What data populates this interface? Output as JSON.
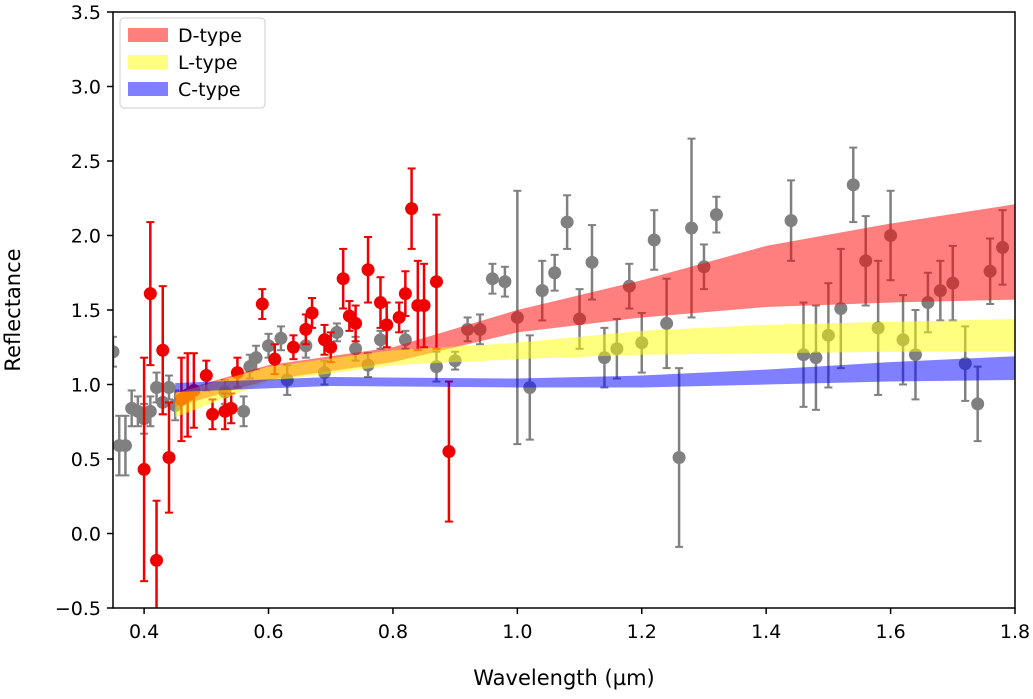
{
  "chart_data": {
    "type": "scatter",
    "title": "",
    "xlabel": "Wavelength (µm)",
    "ylabel": "Reflectance",
    "xlim": [
      0.35,
      1.8
    ],
    "ylim": [
      -0.5,
      3.5
    ],
    "xticks": [
      "0.4",
      "0.6",
      "0.8",
      "1.0",
      "1.2",
      "1.4",
      "1.6",
      "1.8"
    ],
    "xtick_values": [
      0.4,
      0.6,
      0.8,
      1.0,
      1.2,
      1.4,
      1.6,
      1.8
    ],
    "yticks": [
      "−0.5",
      "0.0",
      "0.5",
      "1.0",
      "1.5",
      "2.0",
      "2.5",
      "3.0",
      "3.5"
    ],
    "ytick_values": [
      -0.5,
      0,
      0.5,
      1.0,
      1.5,
      2.0,
      2.5,
      3.0,
      3.5
    ],
    "grid": false,
    "legend_position": "top-left",
    "bands": [
      {
        "name": "D-type",
        "color": "#ff0000",
        "x": [
          0.45,
          0.6,
          0.8,
          1.0,
          1.2,
          1.4,
          1.6,
          1.8
        ],
        "low": [
          0.85,
          1.03,
          1.15,
          1.35,
          1.45,
          1.52,
          1.55,
          1.57
        ],
        "high": [
          0.95,
          1.13,
          1.25,
          1.5,
          1.7,
          1.93,
          2.08,
          2.21
        ]
      },
      {
        "name": "L-type",
        "color": "#ffff00",
        "x": [
          0.45,
          0.6,
          0.8,
          1.0,
          1.2,
          1.4,
          1.6,
          1.8
        ],
        "low": [
          0.78,
          1.02,
          1.13,
          1.17,
          1.2,
          1.21,
          1.22,
          1.22
        ],
        "high": [
          0.94,
          1.12,
          1.23,
          1.28,
          1.36,
          1.4,
          1.42,
          1.44
        ]
      },
      {
        "name": "C-type",
        "color": "#0000ff",
        "x": [
          0.45,
          0.7,
          1.0,
          1.2,
          1.4,
          1.6,
          1.8
        ],
        "low": [
          0.95,
          0.99,
          0.98,
          0.98,
          1.0,
          1.02,
          1.03
        ],
        "high": [
          1.01,
          1.05,
          1.04,
          1.06,
          1.1,
          1.15,
          1.19
        ]
      }
    ],
    "series": [
      {
        "color": "#808080",
        "points": [
          [
            0.35,
            1.22,
            0.1
          ],
          [
            0.36,
            0.59,
            0.2
          ],
          [
            0.37,
            0.59,
            0.2
          ],
          [
            0.38,
            0.84,
            0.12
          ],
          [
            0.39,
            0.82,
            0.1
          ],
          [
            0.4,
            0.77,
            0.1
          ],
          [
            0.41,
            0.82,
            0.1
          ],
          [
            0.42,
            0.98,
            0.1
          ],
          [
            0.43,
            0.88,
            0.08
          ],
          [
            0.44,
            0.98,
            0.08
          ],
          [
            0.45,
            0.86,
            0.1
          ],
          [
            0.53,
            0.95,
            0.08
          ],
          [
            0.56,
            0.82,
            0.1
          ],
          [
            0.57,
            1.12,
            0.08
          ],
          [
            0.58,
            1.18,
            0.08
          ],
          [
            0.6,
            1.26,
            0.08
          ],
          [
            0.62,
            1.31,
            0.08
          ],
          [
            0.63,
            1.03,
            0.1
          ],
          [
            0.66,
            1.26,
            0.08
          ],
          [
            0.69,
            1.08,
            0.08
          ],
          [
            0.71,
            1.35,
            0.06
          ],
          [
            0.74,
            1.24,
            0.08
          ],
          [
            0.76,
            1.13,
            0.08
          ],
          [
            0.78,
            1.3,
            0.06
          ],
          [
            0.82,
            1.3,
            0.06
          ],
          [
            0.87,
            1.12,
            0.1
          ],
          [
            0.9,
            1.16,
            0.06
          ],
          [
            0.92,
            1.37,
            0.08
          ],
          [
            0.94,
            1.37,
            0.1
          ],
          [
            0.96,
            1.71,
            0.1
          ],
          [
            0.98,
            1.69,
            0.1
          ],
          [
            1.0,
            1.45,
            0.85
          ],
          [
            1.02,
            0.98,
            0.35
          ],
          [
            1.04,
            1.63,
            0.2
          ],
          [
            1.06,
            1.75,
            0.12
          ],
          [
            1.08,
            2.09,
            0.18
          ],
          [
            1.1,
            1.44,
            0.2
          ],
          [
            1.12,
            1.82,
            0.25
          ],
          [
            1.14,
            1.18,
            0.2
          ],
          [
            1.16,
            1.24,
            0.2
          ],
          [
            1.18,
            1.66,
            0.15
          ],
          [
            1.2,
            1.28,
            0.2
          ],
          [
            1.22,
            1.97,
            0.2
          ],
          [
            1.24,
            1.41,
            0.3
          ],
          [
            1.26,
            0.51,
            0.6
          ],
          [
            1.28,
            2.05,
            0.6
          ],
          [
            1.3,
            1.79,
            0.15
          ],
          [
            1.32,
            2.14,
            0.12
          ],
          [
            1.44,
            2.1,
            0.27
          ],
          [
            1.46,
            1.2,
            0.35
          ],
          [
            1.48,
            1.18,
            0.35
          ],
          [
            1.5,
            1.33,
            0.35
          ],
          [
            1.52,
            1.51,
            0.4
          ],
          [
            1.54,
            2.34,
            0.25
          ],
          [
            1.56,
            1.83,
            0.3
          ],
          [
            1.58,
            1.38,
            0.45
          ],
          [
            1.6,
            2.0,
            0.3
          ],
          [
            1.62,
            1.3,
            0.3
          ],
          [
            1.64,
            1.2,
            0.3
          ],
          [
            1.66,
            1.55,
            0.2
          ],
          [
            1.68,
            1.63,
            0.2
          ],
          [
            1.7,
            1.68,
            0.25
          ],
          [
            1.72,
            1.14,
            0.25
          ],
          [
            1.74,
            0.87,
            0.25
          ],
          [
            1.76,
            1.76,
            0.22
          ],
          [
            1.78,
            1.92,
            0.25
          ]
        ]
      },
      {
        "color": "#ee0000",
        "points": [
          [
            0.4,
            0.43,
            0.75
          ],
          [
            0.41,
            1.61,
            0.48
          ],
          [
            0.42,
            -0.18,
            0.4
          ],
          [
            0.43,
            1.23,
            0.43
          ],
          [
            0.44,
            0.51,
            0.37
          ],
          [
            0.46,
            0.9,
            0.28
          ],
          [
            0.47,
            0.93,
            0.28
          ],
          [
            0.48,
            0.96,
            0.25
          ],
          [
            0.5,
            1.06,
            0.1
          ],
          [
            0.51,
            0.8,
            0.1
          ],
          [
            0.53,
            0.82,
            0.12
          ],
          [
            0.54,
            0.84,
            0.1
          ],
          [
            0.55,
            1.08,
            0.1
          ],
          [
            0.59,
            1.54,
            0.1
          ],
          [
            0.61,
            1.17,
            0.1
          ],
          [
            0.64,
            1.25,
            0.08
          ],
          [
            0.66,
            1.37,
            0.1
          ],
          [
            0.67,
            1.48,
            0.1
          ],
          [
            0.69,
            1.3,
            0.1
          ],
          [
            0.7,
            1.25,
            0.1
          ],
          [
            0.72,
            1.71,
            0.2
          ],
          [
            0.73,
            1.46,
            0.1
          ],
          [
            0.74,
            1.41,
            0.12
          ],
          [
            0.76,
            1.77,
            0.22
          ],
          [
            0.78,
            1.55,
            0.17
          ],
          [
            0.79,
            1.4,
            0.15
          ],
          [
            0.81,
            1.45,
            0.1
          ],
          [
            0.82,
            1.61,
            0.15
          ],
          [
            0.83,
            2.18,
            0.27
          ],
          [
            0.84,
            1.53,
            0.3
          ],
          [
            0.85,
            1.53,
            0.28
          ],
          [
            0.87,
            1.69,
            0.45
          ],
          [
            0.89,
            0.55,
            0.47
          ]
        ]
      }
    ]
  }
}
